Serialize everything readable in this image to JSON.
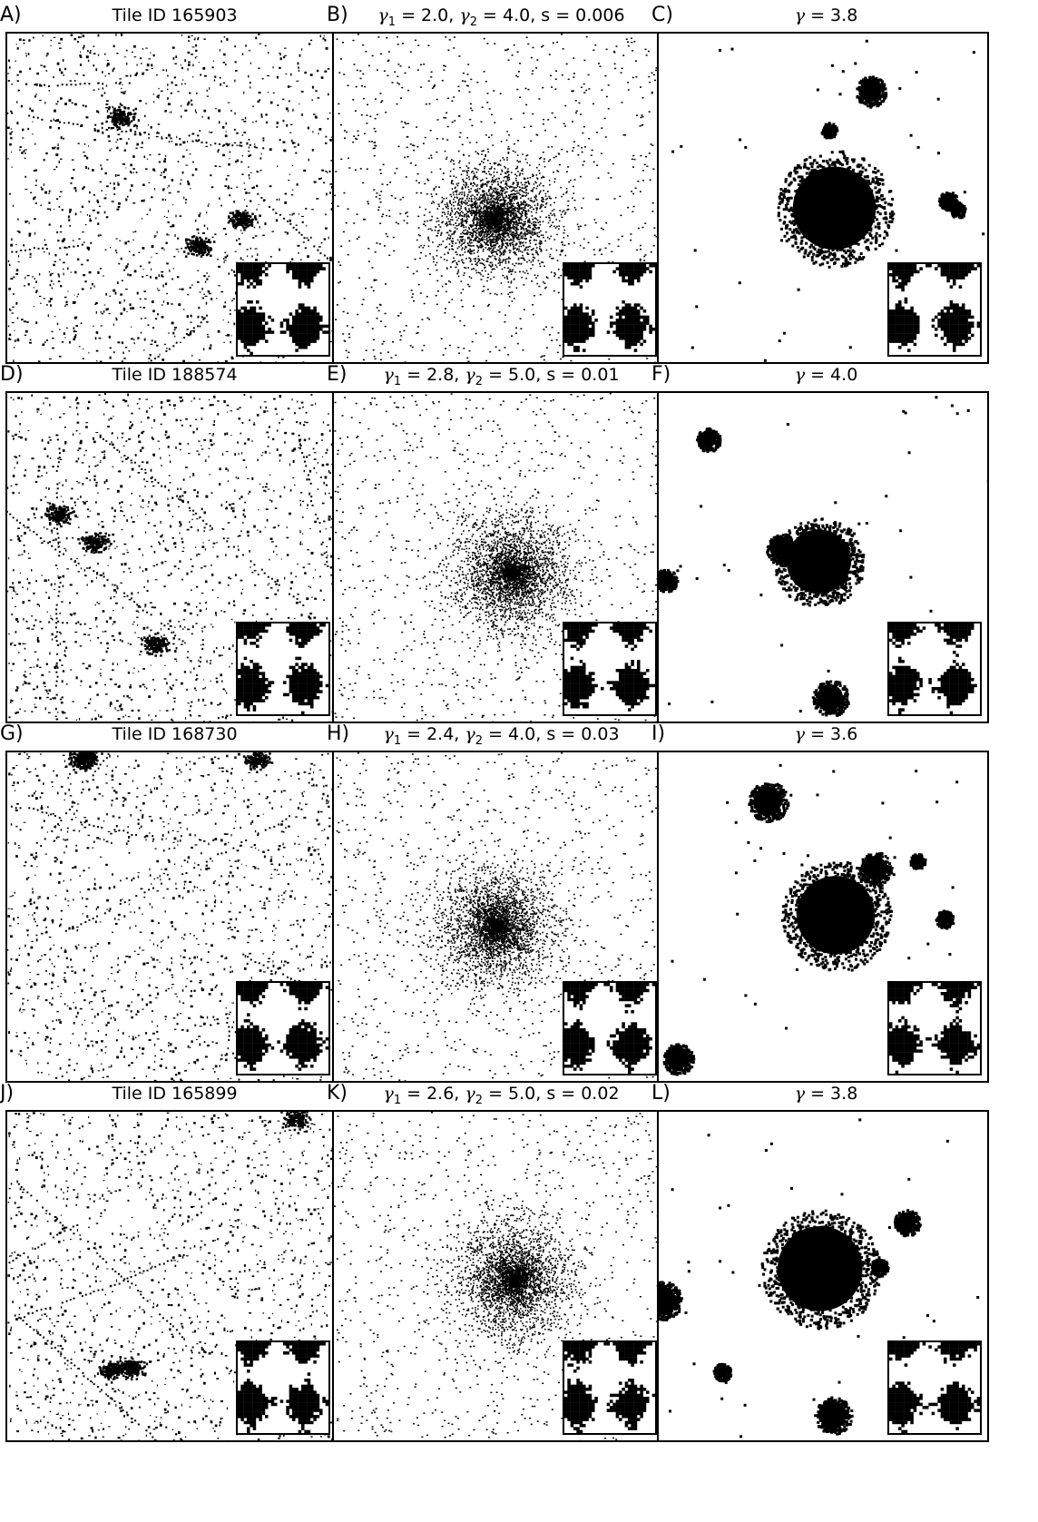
{
  "figure": {
    "panels": [
      {
        "label": "A)",
        "title": "Tile ID 165903",
        "kind": "tile",
        "seed": 11
      },
      {
        "label": "B)",
        "title": "γ1 = 2.0, γ2 = 4.0, s = 0.006",
        "kind": "diffuse",
        "seed": 12
      },
      {
        "label": "C)",
        "title": "γ = 3.8",
        "kind": "blob",
        "seed": 13
      },
      {
        "label": "D)",
        "title": "Tile ID 188574",
        "kind": "tile",
        "seed": 21
      },
      {
        "label": "E)",
        "title": "γ1 = 2.8, γ2 = 5.0, s = 0.01",
        "kind": "diffuse",
        "seed": 22
      },
      {
        "label": "F)",
        "title": "γ = 4.0",
        "kind": "blob",
        "seed": 23
      },
      {
        "label": "G)",
        "title": "Tile ID 168730",
        "kind": "tile",
        "seed": 31
      },
      {
        "label": "H)",
        "title": "γ1 = 2.4, γ2 = 4.0, s = 0.03",
        "kind": "diffuse",
        "seed": 32
      },
      {
        "label": "I)",
        "title": "γ = 3.6",
        "kind": "blob",
        "seed": 33
      },
      {
        "label": "J)",
        "title": "Tile ID 165899",
        "kind": "tile",
        "seed": 41
      },
      {
        "label": "K)",
        "title": "γ1 = 2.6, γ2 = 5.0, s = 0.02",
        "kind": "diffuse",
        "seed": 42
      },
      {
        "label": "L)",
        "title": "γ = 3.8",
        "kind": "blob",
        "seed": 43
      }
    ]
  }
}
